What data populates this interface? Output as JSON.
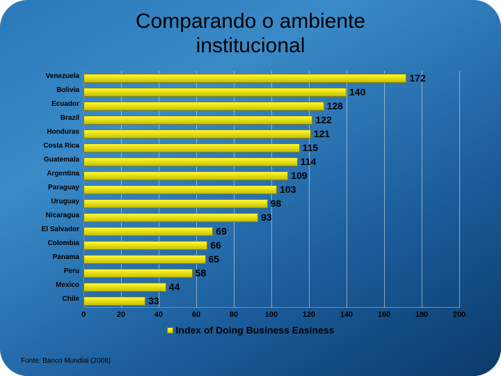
{
  "title": {
    "line1": "Comparando o ambiente",
    "line2": "institucional",
    "fontsize": 30
  },
  "source": {
    "text": "Fonte: Banco Mundial (2008)",
    "fontsize": 10
  },
  "chart": {
    "type": "bar-horizontal",
    "xlim": [
      0,
      200
    ],
    "xtick_step": 20,
    "xticks": [
      0,
      20,
      40,
      60,
      80,
      100,
      120,
      140,
      160,
      180,
      200
    ],
    "bar_color_top": "#fef838",
    "bar_color_bottom": "#c8bf00",
    "bar_border": "#8a8300",
    "grid_color": "rgba(190,210,225,0.7)",
    "cat_fontsize": 10,
    "val_fontsize": 14,
    "tick_fontsize": 11,
    "legend_fontsize": 14,
    "legend_label": "Index of Doing Business Easiness",
    "categories": [
      {
        "label": "Venezuela",
        "value": 172
      },
      {
        "label": "Bolivia",
        "value": 140
      },
      {
        "label": "Ecuador",
        "value": 128
      },
      {
        "label": "Brazil",
        "value": 122
      },
      {
        "label": "Honduras",
        "value": 121
      },
      {
        "label": "Costa Rica",
        "value": 115
      },
      {
        "label": "Guatemala",
        "value": 114
      },
      {
        "label": "Argentina",
        "value": 109
      },
      {
        "label": "Paraguay",
        "value": 103
      },
      {
        "label": "Uruguay",
        "value": 98
      },
      {
        "label": "Nicaragua",
        "value": 93
      },
      {
        "label": "El Salvador",
        "value": 69
      },
      {
        "label": "Colombia",
        "value": 66
      },
      {
        "label": "Panama",
        "value": 65
      },
      {
        "label": "Peru",
        "value": 58
      },
      {
        "label": "Mexico",
        "value": 44
      },
      {
        "label": "Chile",
        "value": 33
      }
    ]
  }
}
